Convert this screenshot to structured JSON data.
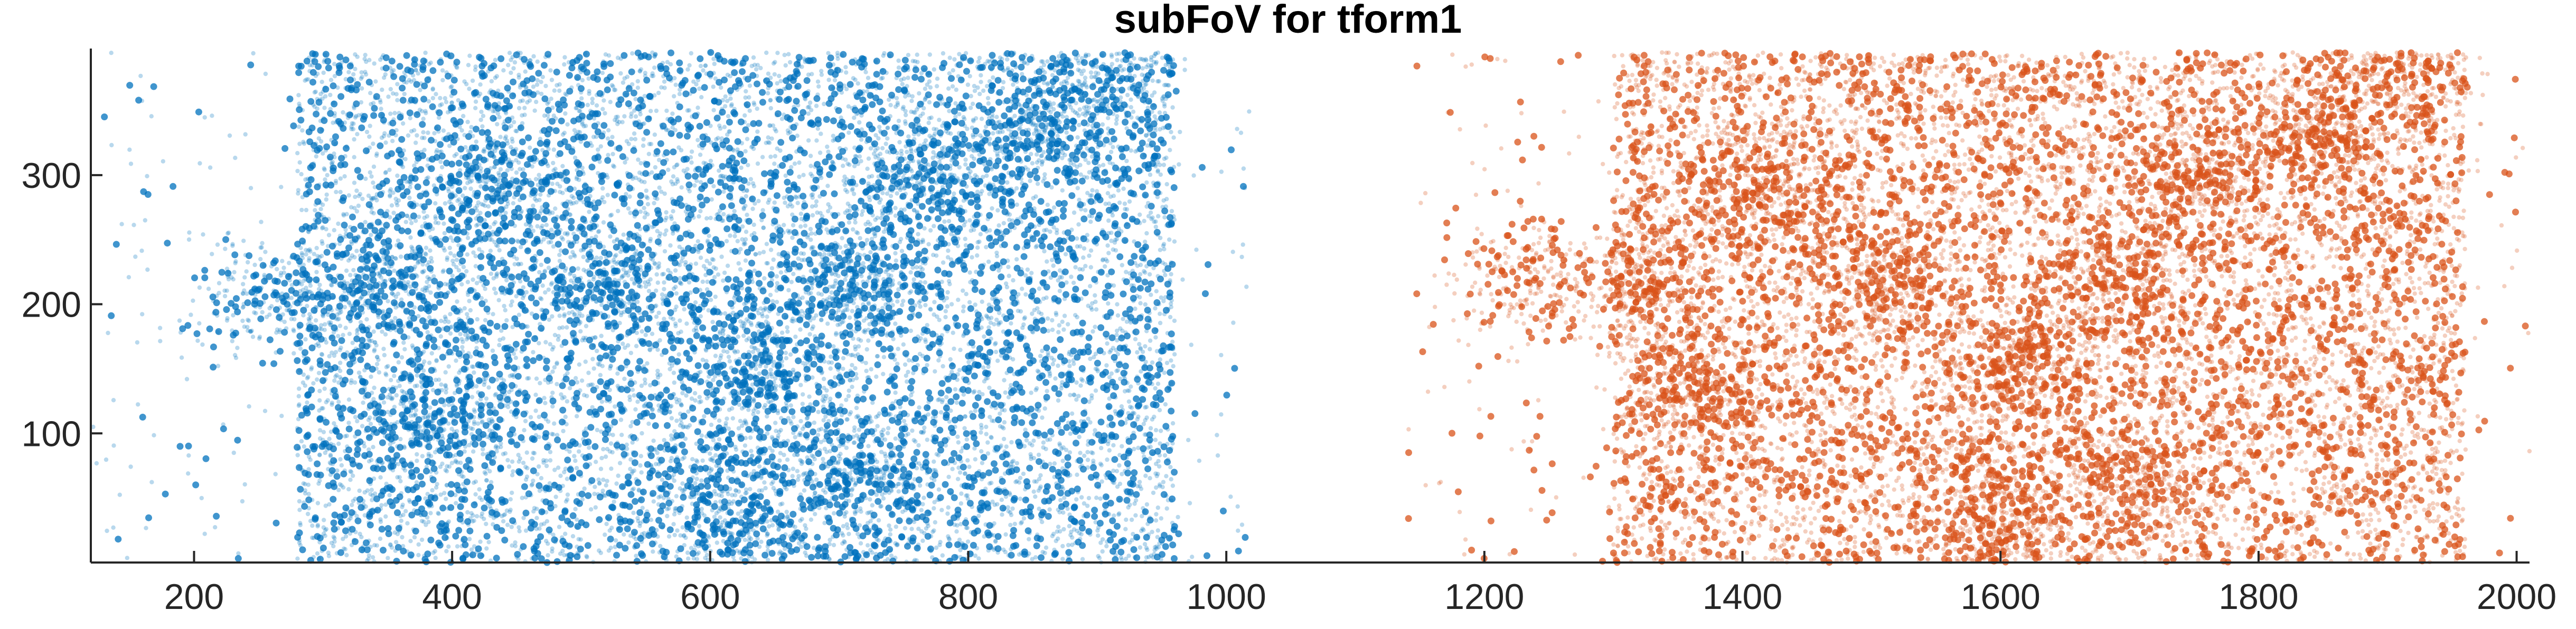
{
  "chart_data": {
    "type": "scatter",
    "title": "subFoV for tform1",
    "xlabel": "",
    "ylabel": "",
    "xlim": [
      120,
      2010
    ],
    "ylim": [
      0,
      398
    ],
    "x_ticks": [
      200,
      400,
      600,
      800,
      1000,
      1200,
      1400,
      1600,
      1800,
      2000
    ],
    "y_ticks": [
      100,
      200,
      300
    ],
    "grid": false,
    "legend": "none",
    "series": [
      {
        "color": "#0072BD",
        "x_range": [
          120,
          1020
        ],
        "y_range": [
          0,
          395
        ],
        "dense_x_range": [
          280,
          960
        ],
        "approx_point_count": 14000,
        "clusters": [
          {
            "x": 720,
            "y": 70
          },
          {
            "x": 705,
            "y": 215
          },
          {
            "x": 525,
            "y": 220
          },
          {
            "x": 635,
            "y": 150
          },
          {
            "x": 380,
            "y": 115
          },
          {
            "x": 340,
            "y": 215
          },
          {
            "x": 255,
            "y": 205
          },
          {
            "x": 770,
            "y": 300
          },
          {
            "x": 900,
            "y": 380
          },
          {
            "x": 615,
            "y": 35
          },
          {
            "x": 860,
            "y": 330
          },
          {
            "x": 440,
            "y": 290
          }
        ]
      },
      {
        "color": "#D95319",
        "x_range": [
          1140,
          2010
        ],
        "y_range": [
          0,
          395
        ],
        "dense_x_range": [
          1300,
          1960
        ],
        "approx_point_count": 14000,
        "clusters": [
          {
            "x": 1700,
            "y": 60
          },
          {
            "x": 1695,
            "y": 215
          },
          {
            "x": 1505,
            "y": 220
          },
          {
            "x": 1615,
            "y": 150
          },
          {
            "x": 1370,
            "y": 130
          },
          {
            "x": 1320,
            "y": 215
          },
          {
            "x": 1235,
            "y": 220
          },
          {
            "x": 1755,
            "y": 300
          },
          {
            "x": 1905,
            "y": 385
          },
          {
            "x": 1600,
            "y": 30
          },
          {
            "x": 1850,
            "y": 330
          },
          {
            "x": 1420,
            "y": 290
          }
        ]
      }
    ]
  }
}
